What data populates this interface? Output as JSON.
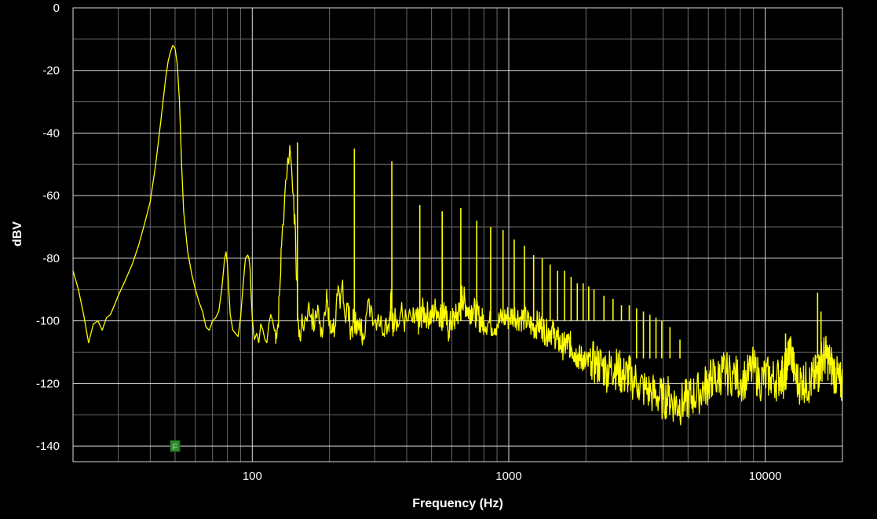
{
  "chart_data": {
    "type": "line",
    "title": "",
    "xlabel": "Frequency (Hz)",
    "ylabel": "dBV",
    "x_scale": "log",
    "xlim": [
      20,
      20000
    ],
    "ylim": [
      -145,
      0
    ],
    "x_ticks": [
      100,
      1000,
      10000
    ],
    "x_tick_labels": [
      "100",
      "1000",
      "10000"
    ],
    "y_ticks": [
      0,
      -20,
      -40,
      -60,
      -80,
      -100,
      -120,
      -140
    ],
    "y_tick_labels": [
      "0",
      "-20",
      "-40",
      "-60",
      "-80",
      "-100",
      "-120",
      "-140"
    ],
    "grid": true,
    "background_color": "#000000",
    "series_color": "#ffff00",
    "marker": {
      "label": "F",
      "color": "#2e8b2e",
      "x": 50,
      "y": -140
    },
    "series": [
      {
        "x": [
          20,
          21,
          22,
          23,
          24,
          25,
          26,
          27,
          28,
          29,
          30,
          32,
          34,
          36,
          38,
          40,
          42,
          44,
          46,
          47,
          48,
          49,
          50,
          51,
          52,
          53,
          54,
          56,
          58,
          60,
          62,
          64,
          66,
          68,
          70,
          72,
          74,
          76,
          78,
          79,
          80,
          81,
          82,
          84,
          86,
          88,
          90,
          92,
          94,
          96,
          97,
          98,
          99,
          100,
          101,
          102,
          104,
          106,
          108,
          110,
          112,
          114,
          116,
          118,
          120,
          122,
          124,
          126,
          128,
          130,
          135,
          140,
          145,
          148,
          150,
          152,
          155,
          160,
          165,
          170,
          175,
          180,
          185,
          190,
          195,
          198,
          200,
          202,
          205,
          210,
          215,
          220,
          225,
          230,
          235,
          240,
          245,
          248,
          250,
          252,
          255,
          260,
          265,
          270,
          280,
          290,
          300,
          310,
          320,
          330,
          340,
          345,
          348,
          350,
          352,
          355,
          360,
          370,
          380,
          390,
          400,
          420,
          440,
          450,
          460,
          480,
          500,
          520,
          540,
          550,
          560,
          580,
          600,
          620,
          640,
          650,
          660,
          680,
          700,
          720,
          750,
          780,
          800,
          850,
          900,
          950,
          1000,
          1050,
          1100,
          1150,
          1200,
          1250,
          1300,
          1350,
          1400,
          1450,
          1500,
          1550,
          1600,
          1650,
          1700,
          1750,
          1800,
          1850,
          1900,
          1950,
          2000,
          2100,
          2200,
          2300,
          2400,
          2500,
          2600,
          2700,
          2800,
          2900,
          3000,
          3200,
          3400,
          3600,
          3800,
          4000,
          4200,
          4400,
          4600,
          4800,
          5000,
          5200,
          5500,
          5800,
          6000,
          6200,
          6500,
          6800,
          7000,
          7500,
          8000,
          8500,
          9000,
          9500,
          10000,
          10500,
          11000,
          11500,
          11800,
          12000,
          12200,
          12500,
          13000,
          13500,
          14000,
          14500,
          15000,
          15500,
          16000,
          16200,
          16500,
          17000,
          17500,
          18000,
          18500,
          19000,
          19500,
          20000
        ],
        "y": [
          -84,
          -90,
          -98,
          -107,
          -101,
          -100,
          -103,
          -99,
          -98,
          -95,
          -92,
          -87,
          -82,
          -76,
          -69,
          -62,
          -50,
          -36,
          -22,
          -17,
          -14,
          -12,
          -13,
          -18,
          -30,
          -50,
          -65,
          -78,
          -85,
          -90,
          -94,
          -97,
          -102,
          -103,
          -100,
          -99,
          -97,
          -90,
          -80,
          -78,
          -82,
          -90,
          -98,
          -103,
          -104,
          -105,
          -99,
          -89,
          -80,
          -79,
          -80,
          -83,
          -92,
          -99,
          -103,
          -106,
          -104,
          -107,
          -101,
          -103,
          -106,
          -107,
          -101,
          -98,
          -100,
          -103,
          -104,
          -101,
          -90,
          -76,
          -55,
          -44,
          -60,
          -80,
          -93,
          -105,
          -103,
          -100,
          -96,
          -98,
          -102,
          -95,
          -105,
          -99,
          -90,
          -100,
          -100,
          -104,
          -101,
          -102,
          -92,
          -96,
          -87,
          -99,
          -95,
          -101,
          -103,
          -100,
          -100,
          -101,
          -100,
          -103,
          -102,
          -104,
          -97,
          -95,
          -100,
          -98,
          -102,
          -100,
          -101,
          -97,
          -90,
          -99,
          -101,
          -101,
          -96,
          -102,
          -97,
          -100,
          -100,
          -100,
          -100,
          -101,
          -97,
          -98,
          -99,
          -96,
          -98,
          -99,
          -96,
          -103,
          -100,
          -99,
          -97,
          -93,
          -92,
          -95,
          -97,
          -96,
          -98,
          -100,
          -100,
          -101,
          -101,
          -99,
          -99,
          -98,
          -99,
          -99,
          -101,
          -102,
          -101,
          -102,
          -104,
          -103,
          -104,
          -106,
          -108,
          -108,
          -107,
          -108,
          -110,
          -111,
          -112,
          -112,
          -114,
          -113,
          -114,
          -114,
          -116,
          -115,
          -115,
          -116,
          -118,
          -117,
          -118,
          -120,
          -122,
          -123,
          -124,
          -125,
          -124,
          -126,
          -127,
          -126,
          -125,
          -124,
          -123,
          -121,
          -120,
          -118,
          -119,
          -116,
          -117,
          -117,
          -119,
          -118,
          -115,
          -119,
          -118,
          -118,
          -119,
          -117,
          -118,
          -116,
          -113,
          -108,
          -117,
          -120,
          -119,
          -120,
          -120,
          -118,
          -117,
          -116,
          -113,
          -111,
          -112,
          -114,
          -116,
          -118,
          -120,
          -120
        ],
        "peaks": [
          {
            "x": 150,
            "y": -43
          },
          {
            "x": 250,
            "y": -45
          },
          {
            "x": 350,
            "y": -49
          },
          {
            "x": 450,
            "y": -63
          },
          {
            "x": 550,
            "y": -65
          },
          {
            "x": 650,
            "y": -64
          },
          {
            "x": 750,
            "y": -68
          },
          {
            "x": 850,
            "y": -70
          },
          {
            "x": 950,
            "y": -71
          },
          {
            "x": 1050,
            "y": -74
          },
          {
            "x": 1150,
            "y": -76
          },
          {
            "x": 1250,
            "y": -79
          },
          {
            "x": 1350,
            "y": -80
          },
          {
            "x": 1450,
            "y": -82
          },
          {
            "x": 1550,
            "y": -84
          },
          {
            "x": 1650,
            "y": -84
          },
          {
            "x": 1750,
            "y": -86
          },
          {
            "x": 1850,
            "y": -88
          },
          {
            "x": 1950,
            "y": -88
          },
          {
            "x": 2050,
            "y": -89
          },
          {
            "x": 2150,
            "y": -90
          },
          {
            "x": 2350,
            "y": -92
          },
          {
            "x": 2550,
            "y": -93
          },
          {
            "x": 2750,
            "y": -95
          },
          {
            "x": 2950,
            "y": -95
          },
          {
            "x": 3150,
            "y": -96
          },
          {
            "x": 3350,
            "y": -97
          },
          {
            "x": 3550,
            "y": -98
          },
          {
            "x": 3750,
            "y": -99
          },
          {
            "x": 3950,
            "y": -100
          },
          {
            "x": 4250,
            "y": -102
          },
          {
            "x": 4650,
            "y": -106
          },
          {
            "x": 12000,
            "y": -104
          },
          {
            "x": 16000,
            "y": -91
          },
          {
            "x": 16500,
            "y": -97
          }
        ]
      }
    ]
  }
}
